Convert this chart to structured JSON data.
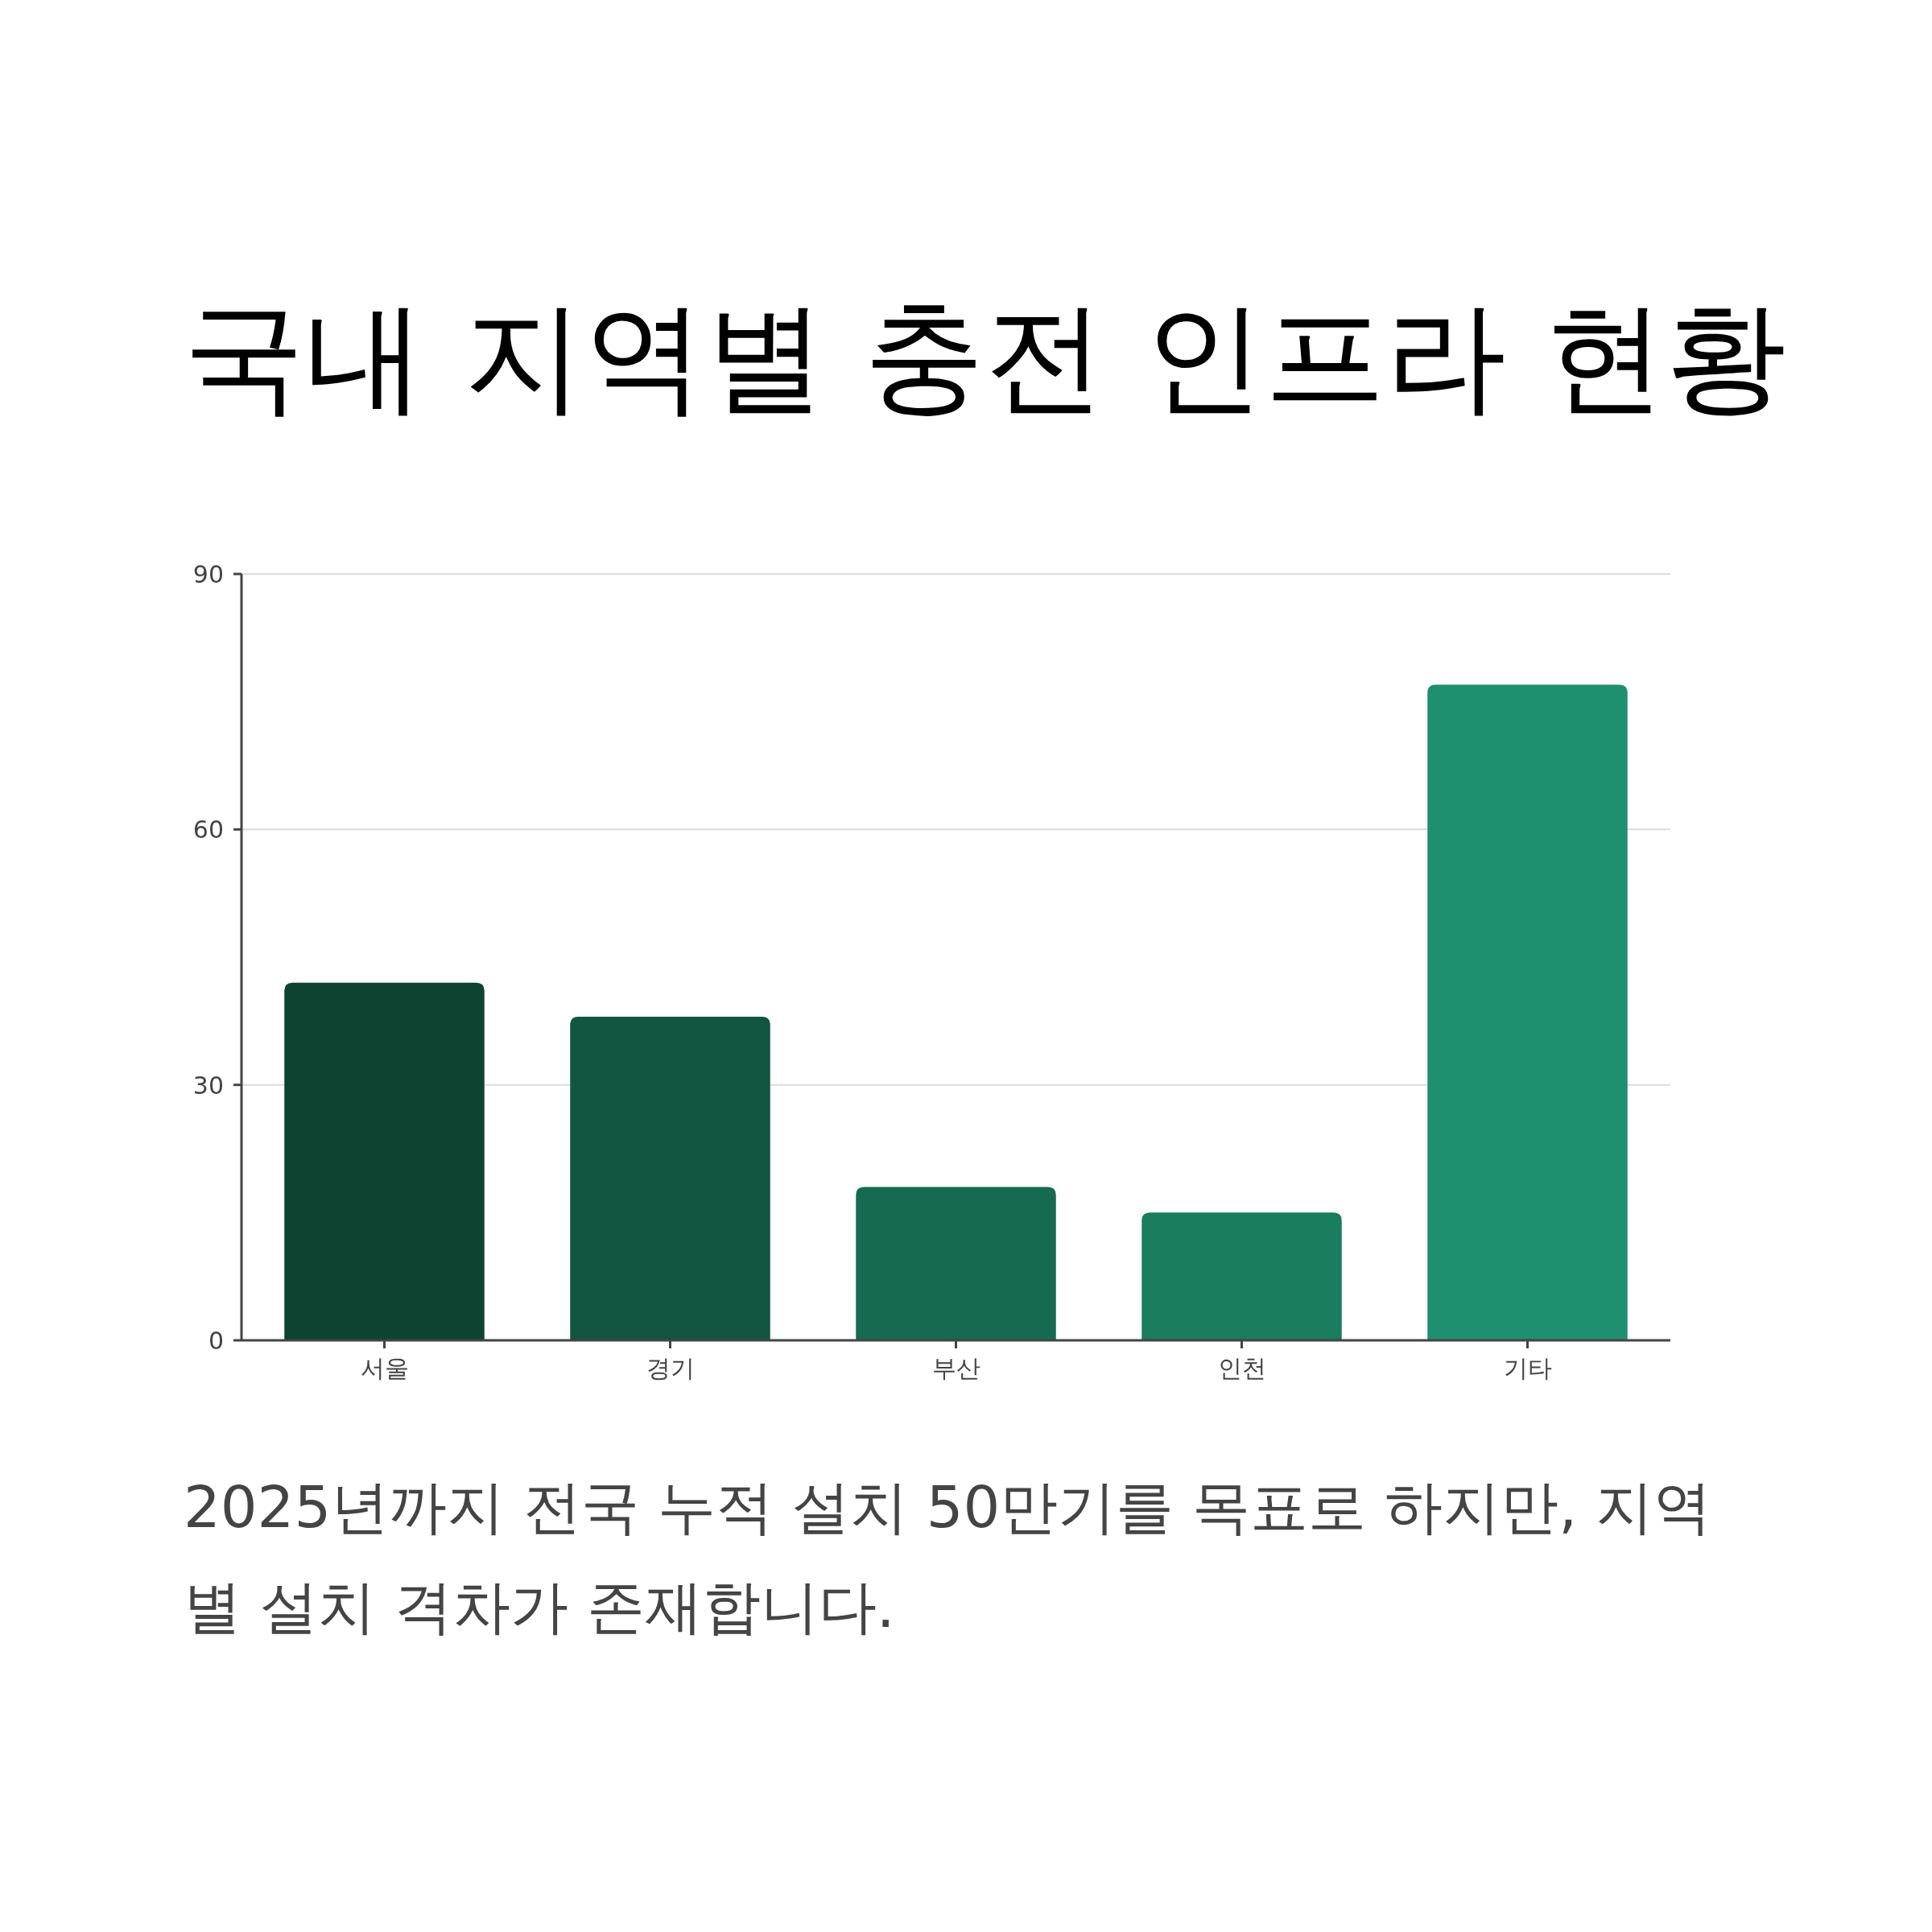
{
  "chart_data": {
    "type": "bar",
    "title": "국내 지역별 충전 인프라 현황",
    "categories": [
      "서울",
      "경기",
      "부산",
      "인천",
      "기타"
    ],
    "values": [
      42,
      38,
      18,
      15,
      77
    ],
    "colors": [
      "#0e4331",
      "#125541",
      "#166a52",
      "#1a7d5e",
      "#1e9070"
    ],
    "ylim": [
      0,
      90
    ],
    "yticks": [
      0,
      30,
      60,
      90
    ],
    "grid": "y",
    "annotations": [
      "2025년까지 전국 누적 설치 50만기를 목표로 하지만, 지역별 설치 격차가 존재합니다."
    ]
  }
}
